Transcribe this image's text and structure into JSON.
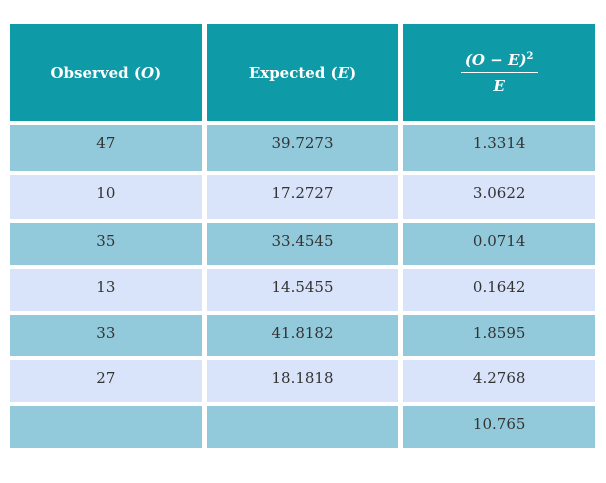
{
  "table": {
    "headers": {
      "observed": {
        "label": "Observed",
        "var": "O"
      },
      "expected": {
        "label": "Expected",
        "var": "E"
      },
      "contribution": {
        "numerator": "(O  − E)",
        "exponent": "2",
        "denominator": "E"
      }
    },
    "rows": [
      {
        "observed": "47",
        "expected": "39.7273",
        "contribution": "1.3314",
        "shade": "dark"
      },
      {
        "observed": "10",
        "expected": "17.2727",
        "contribution": "3.0622",
        "shade": "light"
      },
      {
        "observed": "35",
        "expected": "33.4545",
        "contribution": "0.0714",
        "shade": "dark"
      },
      {
        "observed": "13",
        "expected": "14.5455",
        "contribution": "0.1642",
        "shade": "light"
      },
      {
        "observed": "33",
        "expected": "41.8182",
        "contribution": "1.8595",
        "shade": "dark"
      },
      {
        "observed": "27",
        "expected": "18.1818",
        "contribution": "4.2768",
        "shade": "light"
      },
      {
        "observed": "",
        "expected": "",
        "contribution": "10.765",
        "shade": "dark"
      }
    ],
    "row_heights": [
      46,
      44,
      42,
      42,
      41,
      42,
      42
    ]
  },
  "colors": {
    "header": "#0e9aa7",
    "row_dark": "#92cadb",
    "row_light": "#d9e4fb",
    "text": "#333333"
  }
}
